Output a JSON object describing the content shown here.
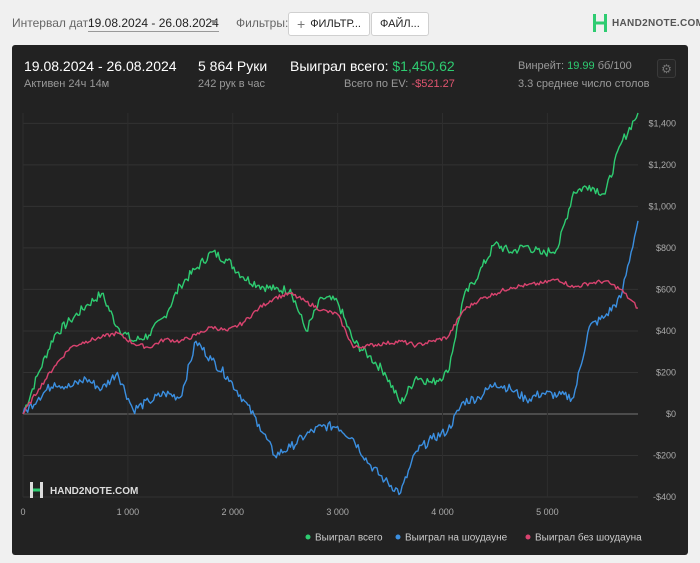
{
  "toolbar": {
    "date_label": "Интервал дат:",
    "date_range": "19.08.2024 - 26.08.2024",
    "filters_label": "Фильтры:",
    "filter_button": "ФИЛЬТР...",
    "file_button": "ФАЙЛ...",
    "logo_text": "HAND2NOTE.COM"
  },
  "stats": {
    "period": "19.08.2024 - 26.08.2024",
    "active": "Активен 24ч 14м",
    "hands": "5 864 Руки",
    "hands_per_hour": "242 рук в час",
    "won_label": "Выиграл всего:",
    "won_value": "$1,450.62",
    "ev_label": "Всего по EV:",
    "ev_value": "-$521.27",
    "winrate_label": "Винрейт:",
    "winrate_value": "19.99",
    "winrate_unit": "бб/100",
    "tables": "3.3 среднее число столов"
  },
  "colors": {
    "green": "#2ecc71",
    "blue": "#3b8fe0",
    "red": "#d9436f",
    "panel": "#222222"
  },
  "watermark": "HAND2NOTE.COM",
  "chart_data": {
    "type": "line",
    "xlabel": "",
    "ylabel": "",
    "xlim": [
      0,
      5864
    ],
    "ylim": [
      -400,
      1450
    ],
    "x_ticks": [
      0,
      1000,
      2000,
      3000,
      4000,
      5000
    ],
    "x_tick_labels": [
      "0",
      "1 000",
      "2 000",
      "3 000",
      "4 000",
      "5 000"
    ],
    "y_ticks": [
      -400,
      -200,
      0,
      200,
      400,
      600,
      800,
      1000,
      1200,
      1400
    ],
    "y_tick_labels": [
      "-$400",
      "-$200",
      "$0",
      "$200",
      "$400",
      "$600",
      "$800",
      "$1,000",
      "$1,200",
      "$1,400"
    ],
    "legend_position": "bottom-right",
    "x": [
      0,
      150,
      300,
      450,
      600,
      750,
      900,
      1050,
      1200,
      1350,
      1500,
      1650,
      1800,
      1950,
      2100,
      2250,
      2400,
      2550,
      2700,
      2850,
      3000,
      3150,
      3300,
      3450,
      3600,
      3750,
      3900,
      4050,
      4200,
      4350,
      4500,
      4650,
      4800,
      4950,
      5100,
      5250,
      5400,
      5550,
      5700,
      5864
    ],
    "series": [
      {
        "name": "Выиграл всего",
        "color": "#2ecc71",
        "values": [
          0,
          200,
          380,
          450,
          520,
          580,
          420,
          350,
          380,
          470,
          620,
          700,
          780,
          740,
          660,
          620,
          600,
          600,
          400,
          560,
          540,
          350,
          280,
          200,
          50,
          180,
          150,
          200,
          560,
          680,
          820,
          780,
          810,
          770,
          800,
          1070,
          1100,
          1060,
          1300,
          1450
        ]
      },
      {
        "name": "Выиграл на шоудауне",
        "color": "#3b8fe0",
        "values": [
          0,
          80,
          150,
          130,
          170,
          120,
          200,
          20,
          60,
          100,
          80,
          350,
          260,
          180,
          70,
          -50,
          -200,
          -160,
          -100,
          -60,
          -60,
          -120,
          -240,
          -320,
          -380,
          -180,
          -120,
          -80,
          60,
          80,
          150,
          120,
          70,
          100,
          90,
          80,
          420,
          470,
          560,
          930
        ]
      },
      {
        "name": "Выиграл без шоудауна",
        "color": "#d9436f",
        "values": [
          0,
          120,
          230,
          320,
          350,
          370,
          390,
          340,
          320,
          360,
          350,
          380,
          420,
          400,
          440,
          510,
          560,
          580,
          540,
          500,
          480,
          320,
          330,
          340,
          350,
          330,
          350,
          370,
          500,
          550,
          580,
          610,
          620,
          630,
          650,
          610,
          630,
          640,
          600,
          510
        ]
      }
    ]
  }
}
